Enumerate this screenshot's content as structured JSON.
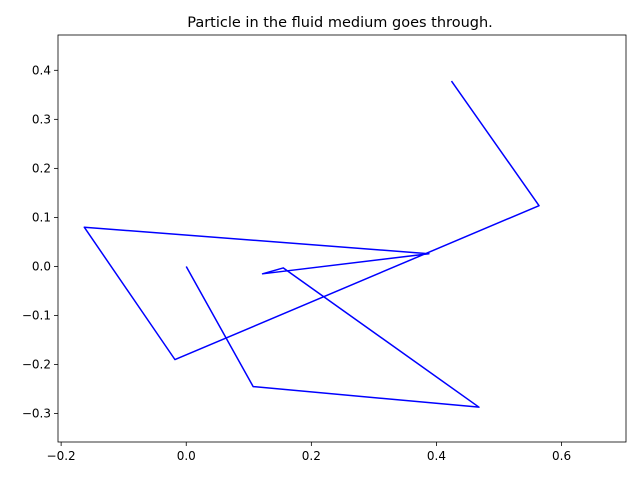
{
  "chart_data": {
    "type": "line",
    "title": "Particle in the fluid medium goes through.",
    "xlabel": "",
    "ylabel": "",
    "xlim": [
      -0.205,
      0.703
    ],
    "ylim": [
      -0.358,
      0.472
    ],
    "xticks": [
      -0.2,
      0.0,
      0.2,
      0.4,
      0.6
    ],
    "xtick_labels": [
      "−0.2",
      "0.0",
      "0.2",
      "0.4",
      "0.6"
    ],
    "yticks": [
      -0.3,
      -0.2,
      -0.1,
      0.0,
      0.1,
      0.2,
      0.3,
      0.4
    ],
    "ytick_labels": [
      "−0.3",
      "−0.2",
      "−0.1",
      "0.0",
      "0.1",
      "0.2",
      "0.3",
      "0.4"
    ],
    "grid": false,
    "series": [
      {
        "name": "",
        "color": "#0000ff",
        "x": [
          0.0,
          0.107,
          0.468,
          0.155,
          0.122,
          0.388,
          -0.163,
          -0.018,
          0.564,
          0.424
        ],
        "y": [
          0.0,
          -0.245,
          -0.287,
          -0.003,
          -0.015,
          0.026,
          0.08,
          -0.19,
          0.124,
          0.378
        ]
      }
    ]
  }
}
